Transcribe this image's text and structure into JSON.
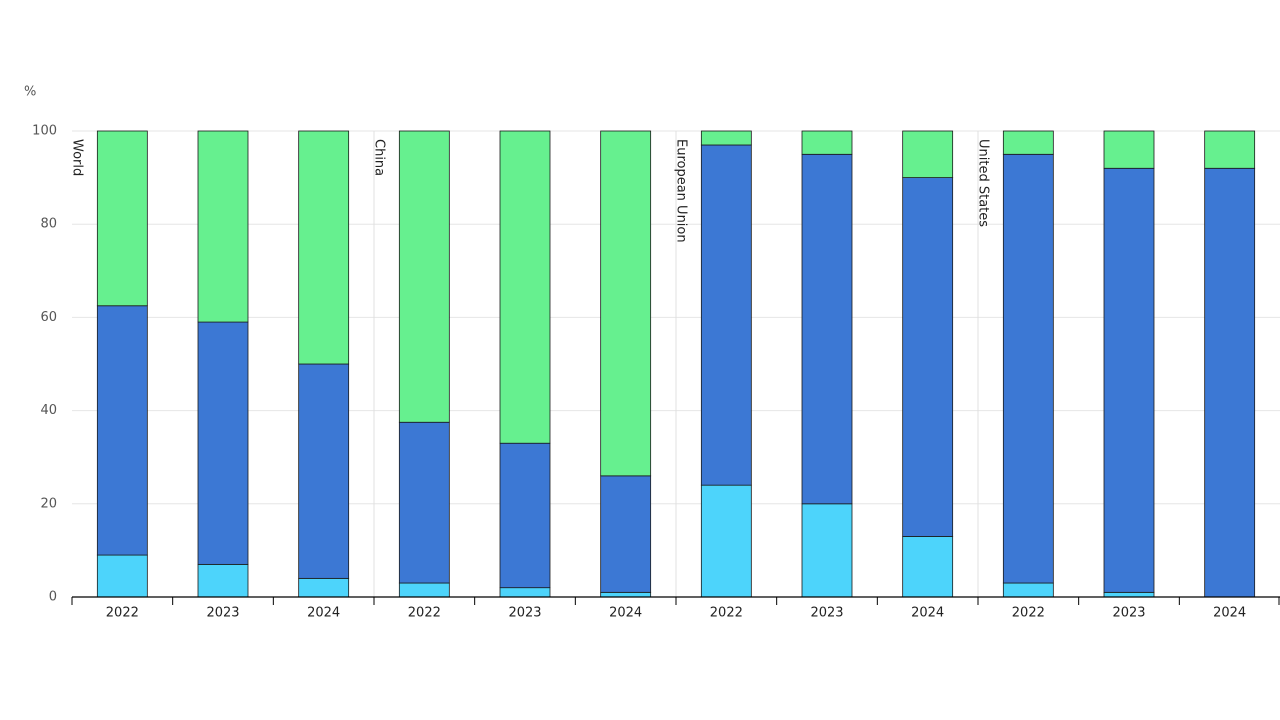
{
  "chart_data": {
    "type": "stacked-bar",
    "y_unit": "%",
    "groups": [
      "World",
      "China",
      "European Union",
      "United States"
    ],
    "categories": [
      "2022",
      "2023",
      "2024",
      "2022",
      "2023",
      "2024",
      "2022",
      "2023",
      "2024",
      "2022",
      "2023",
      "2024"
    ],
    "series": [
      {
        "color": "#4dd4fb",
        "values": [
          9,
          7,
          4,
          3,
          2,
          1,
          24,
          20,
          13,
          3,
          1,
          0
        ]
      },
      {
        "color": "#3c78d4",
        "values": [
          53.5,
          52,
          46,
          34.5,
          31,
          25,
          73,
          75,
          77,
          92,
          91,
          92
        ]
      },
      {
        "color": "#66f08f",
        "values": [
          37.5,
          41,
          50,
          62.5,
          67,
          74,
          3,
          5,
          10,
          5,
          8,
          8
        ]
      }
    ],
    "ylim": [
      0,
      100
    ],
    "yticks": [
      0,
      20,
      40,
      60,
      80,
      100
    ],
    "grid": true
  }
}
